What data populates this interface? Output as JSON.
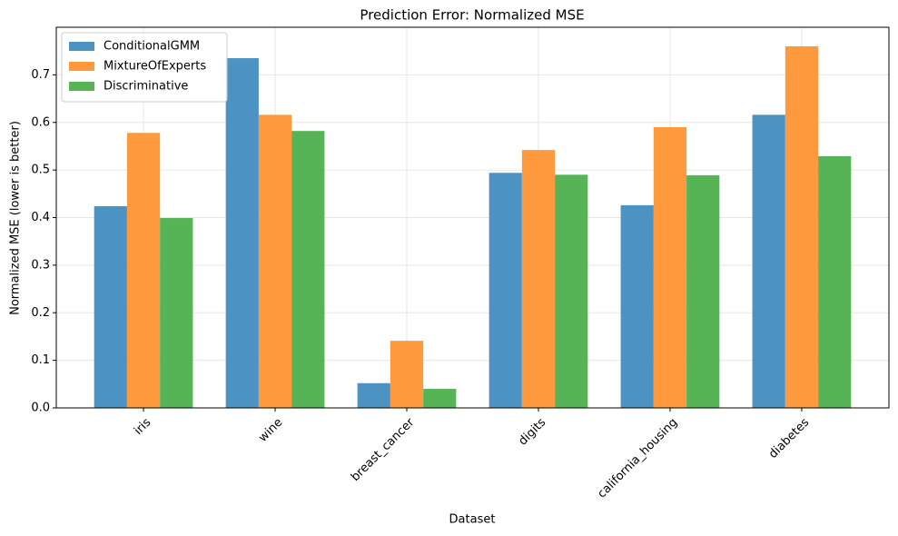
{
  "chart_data": {
    "type": "bar",
    "title": "Prediction Error: Normalized MSE",
    "x_label": "Dataset",
    "y_label": "Normalized MSE (lower is better)",
    "categories": [
      "iris",
      "wine",
      "breast_cancer",
      "digits",
      "california_housing",
      "diabetes"
    ],
    "series": [
      {
        "name": "ConditionalGMM",
        "color": "#4c92c3",
        "values": [
          0.424,
          0.735,
          0.052,
          0.494,
          0.426,
          0.616
        ]
      },
      {
        "name": "MixtureOfExperts",
        "color": "#ff993e",
        "values": [
          0.578,
          0.616,
          0.141,
          0.542,
          0.59,
          0.76
        ]
      },
      {
        "name": "Discriminative",
        "color": "#56b356",
        "values": [
          0.399,
          0.582,
          0.04,
          0.49,
          0.489,
          0.529
        ]
      }
    ],
    "ylim": [
      0,
      0.8
    ],
    "yticks": [
      {
        "value": 0,
        "label": "0.0"
      },
      0.1,
      0.2,
      0.3,
      0.4,
      0.5,
      0.6,
      0.7
    ],
    "grid": true,
    "legend": "upper-left"
  }
}
